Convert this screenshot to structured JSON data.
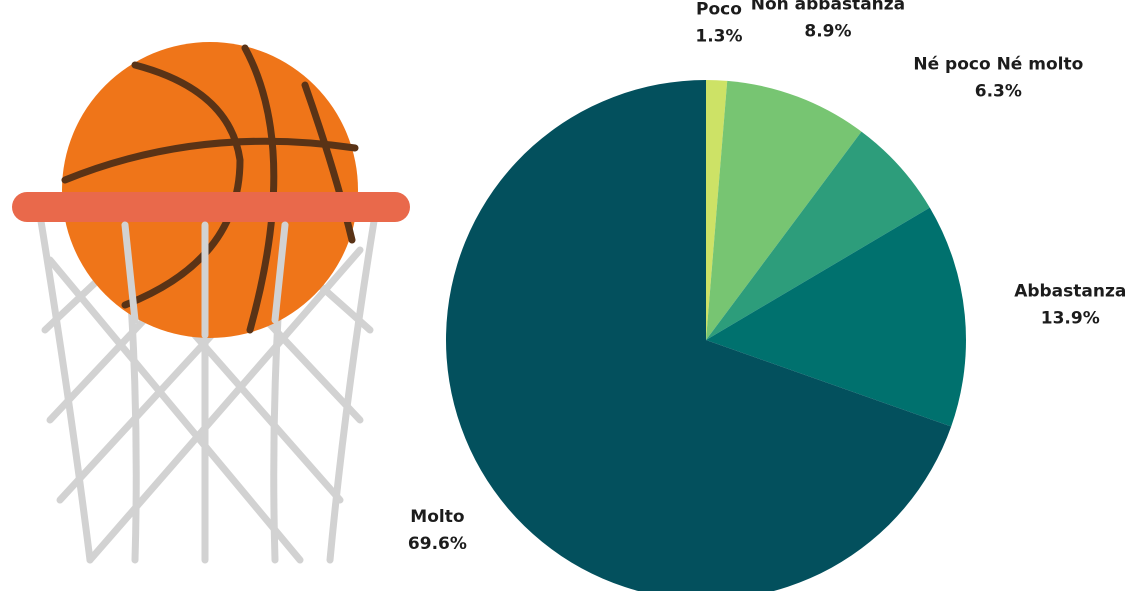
{
  "chart_data": {
    "type": "pie",
    "categories": [
      "Poco",
      "Non abbastanza",
      "Né poco Né molto",
      "Abbastanza",
      "Molto"
    ],
    "values": [
      1.3,
      8.9,
      6.3,
      13.9,
      69.6
    ],
    "value_labels": [
      "1.3%",
      "8.9%",
      "6.3%",
      "13.9%",
      "69.6%"
    ],
    "colors": [
      "#cde266",
      "#77c572",
      "#2d9d7b",
      "#00716e",
      "#03505d"
    ]
  }
}
